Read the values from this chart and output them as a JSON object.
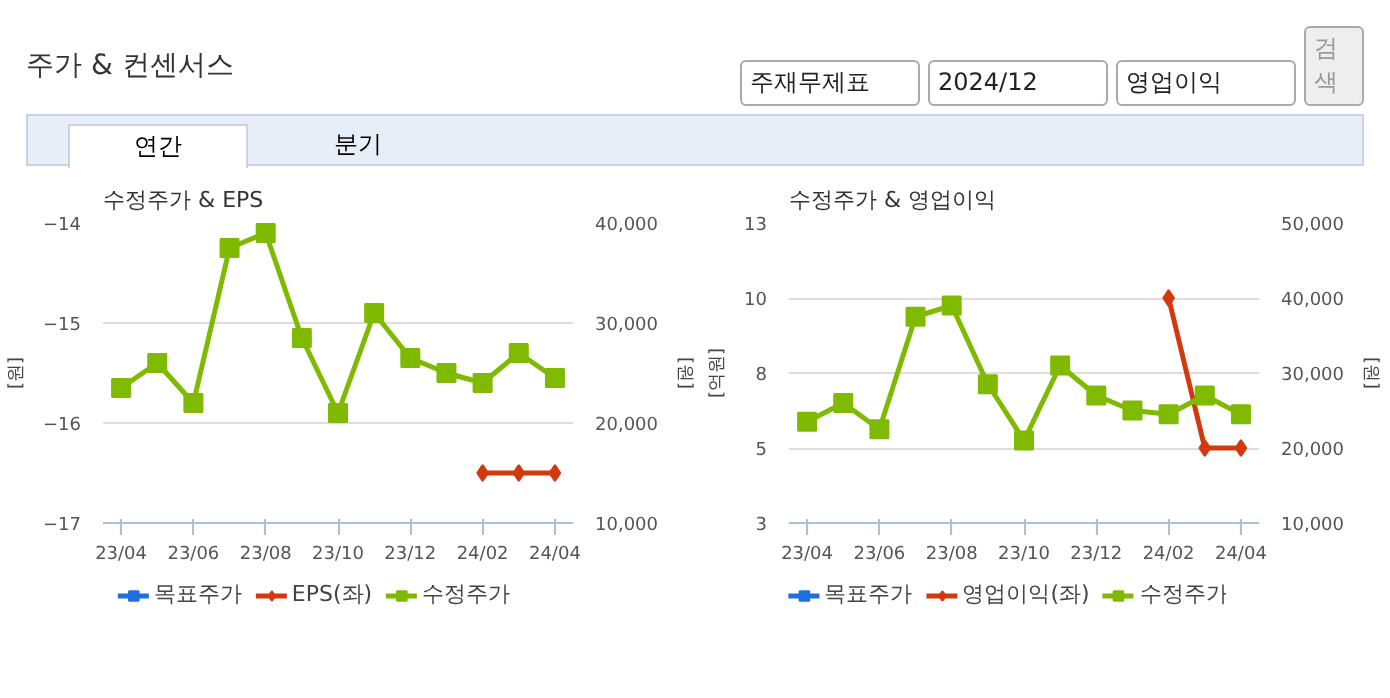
{
  "chart_data": [
    {
      "type": "line",
      "title": "수정주가 & EPS",
      "ylabel": "[원]",
      "y2label": "[원]",
      "annotations": [
        "주가 & 컨센서스",
        "주재무제표",
        "2024/12",
        "영업이익",
        "검색",
        "연간",
        "분기"
      ],
      "categories": [
        "23/04",
        null,
        "23/06",
        null,
        "23/08",
        null,
        "23/10",
        null,
        "23/12",
        null,
        "24/02",
        null,
        "24/04"
      ],
      "ylim": [
        -17,
        -14
      ],
      "yticks": [
        -17,
        -16,
        -15,
        -14
      ],
      "y2lim": [
        10000,
        40000
      ],
      "y2ticks": [
        {
          "value": 10000,
          "label": "10,000"
        },
        {
          "value": 20000,
          "label": "20,000"
        },
        {
          "value": 30000,
          "label": "30,000"
        },
        {
          "value": 40000,
          "label": "40,000"
        }
      ],
      "grid": "y",
      "legend": "bottom",
      "series": [
        {
          "name": "목표주가",
          "marker": "square",
          "color": "#1f6fe0",
          "values": [
            null,
            null,
            null,
            null,
            null,
            null,
            null,
            null,
            null,
            null,
            null,
            null,
            null
          ]
        },
        {
          "name": "EPS(좌)",
          "type": "line",
          "marker": "diamond",
          "color": "#d4380d",
          "values": [
            null,
            null,
            null,
            null,
            null,
            null,
            null,
            null,
            null,
            null,
            -16.5,
            -16.5,
            -16.5
          ]
        },
        {
          "name": "수정주가",
          "type": "line",
          "marker": "square",
          "color": "#7fba00",
          "axis": "y2",
          "values": [
            23500,
            26000,
            22000,
            37500,
            39000,
            28500,
            21000,
            31000,
            26500,
            25000,
            24000,
            27000,
            24500
          ]
        }
      ]
    },
    {
      "type": "line",
      "title": "수정주가 & 영업이익",
      "ylabel": "[억원]",
      "y2label": "[원]",
      "categories": [
        "23/04",
        null,
        "23/06",
        null,
        "23/08",
        null,
        "23/10",
        null,
        "23/12",
        null,
        "24/02",
        null,
        "24/04"
      ],
      "ylim": [
        3,
        13
      ],
      "yticks": [
        {
          "value": 3,
          "label": "3"
        },
        {
          "value": 5.5,
          "label": "5"
        },
        {
          "value": 8,
          "label": "8"
        },
        {
          "value": 10.5,
          "label": "10"
        },
        {
          "value": 13,
          "label": "13"
        }
      ],
      "y2lim": [
        10000,
        50000
      ],
      "y2ticks": [
        {
          "value": 10000,
          "label": "10,000"
        },
        {
          "value": 20000,
          "label": "20,000"
        },
        {
          "value": 30000,
          "label": "30,000"
        },
        {
          "value": 40000,
          "label": "40,000"
        },
        {
          "value": 50000,
          "label": "50,000"
        }
      ],
      "grid": "y",
      "legend": "bottom",
      "series": [
        {
          "name": "목표주가",
          "marker": "square",
          "color": "#1f6fe0",
          "values": [
            null,
            null,
            null,
            null,
            null,
            null,
            null,
            null,
            null,
            null,
            null,
            null,
            null
          ]
        },
        {
          "name": "영업이익(좌)",
          "type": "line",
          "marker": "diamond",
          "color": "#d4380d",
          "values": [
            null,
            null,
            null,
            null,
            null,
            null,
            null,
            null,
            null,
            null,
            10.5,
            5.5,
            5.5
          ]
        },
        {
          "name": "수정주가",
          "type": "line",
          "marker": "square",
          "color": "#7fba00",
          "axis": "y2",
          "values": [
            23500,
            26000,
            22500,
            37500,
            39000,
            28500,
            21000,
            31000,
            27000,
            25000,
            24500,
            27000,
            24500
          ]
        }
      ]
    }
  ]
}
